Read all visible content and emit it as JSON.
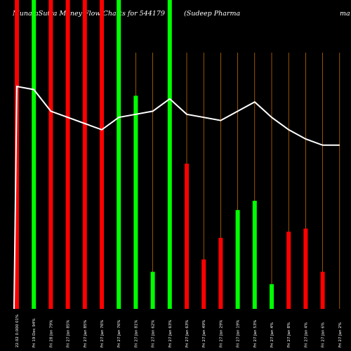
{
  "chart_data": {
    "type": "bar",
    "title_left": "MunafaSutra  Money Flow  Charts for 544179",
    "title_right": "(Sudeep Pharma",
    "title_right_tail": "ma",
    "categories": [
      "22.02 0.000 01%",
      "Fri 19 Dec 94%",
      "Fri 28 Jan 79%",
      "Fri 27 Jan 85%",
      "Fri 27 Jan 85%",
      "Fri 27 Jan 76%",
      "Fri 27 Jan 76%",
      "Fri 27 Jan 81%",
      "Fri 27 Jan 62%",
      "Fri 27 Jan 63%",
      "Fri 27 Jan 63%",
      "Fri 27 Jan 49%",
      "Fri 27 Jan 29%",
      "Fri 27 Jan 19%",
      "Fri 27 Jan 53%",
      "Fri 27 Jan 4%",
      "Fri 27 Jan 8%",
      "Fri 27 Jan 4%",
      "Fri 27 Jan 6%",
      "Fri 27 Jan 2%"
    ],
    "series": [
      {
        "kind": "bar",
        "values": [
          100,
          100,
          100,
          100,
          100,
          100,
          100,
          69,
          12,
          100,
          47,
          16,
          23,
          32,
          35,
          8,
          25,
          26,
          12,
          0
        ],
        "colors": [
          "red",
          "green",
          "red",
          "red",
          "red",
          "red",
          "green",
          "green",
          "green",
          "green",
          "red",
          "red",
          "red",
          "green",
          "green",
          "green",
          "red",
          "red",
          "red",
          "red"
        ]
      },
      {
        "kind": "line",
        "values": [
          72,
          71,
          64,
          62,
          60,
          58,
          62,
          63,
          64,
          68,
          63,
          62,
          61,
          64,
          67,
          62,
          58,
          55,
          53,
          53
        ]
      }
    ],
    "ylim": [
      0,
      100
    ],
    "grid": false,
    "legend": "none",
    "colors": {
      "background": "#000000",
      "up": "#00ff00",
      "down": "#ff0000",
      "line": "#ffffff",
      "guide": "#ff8c00"
    }
  }
}
